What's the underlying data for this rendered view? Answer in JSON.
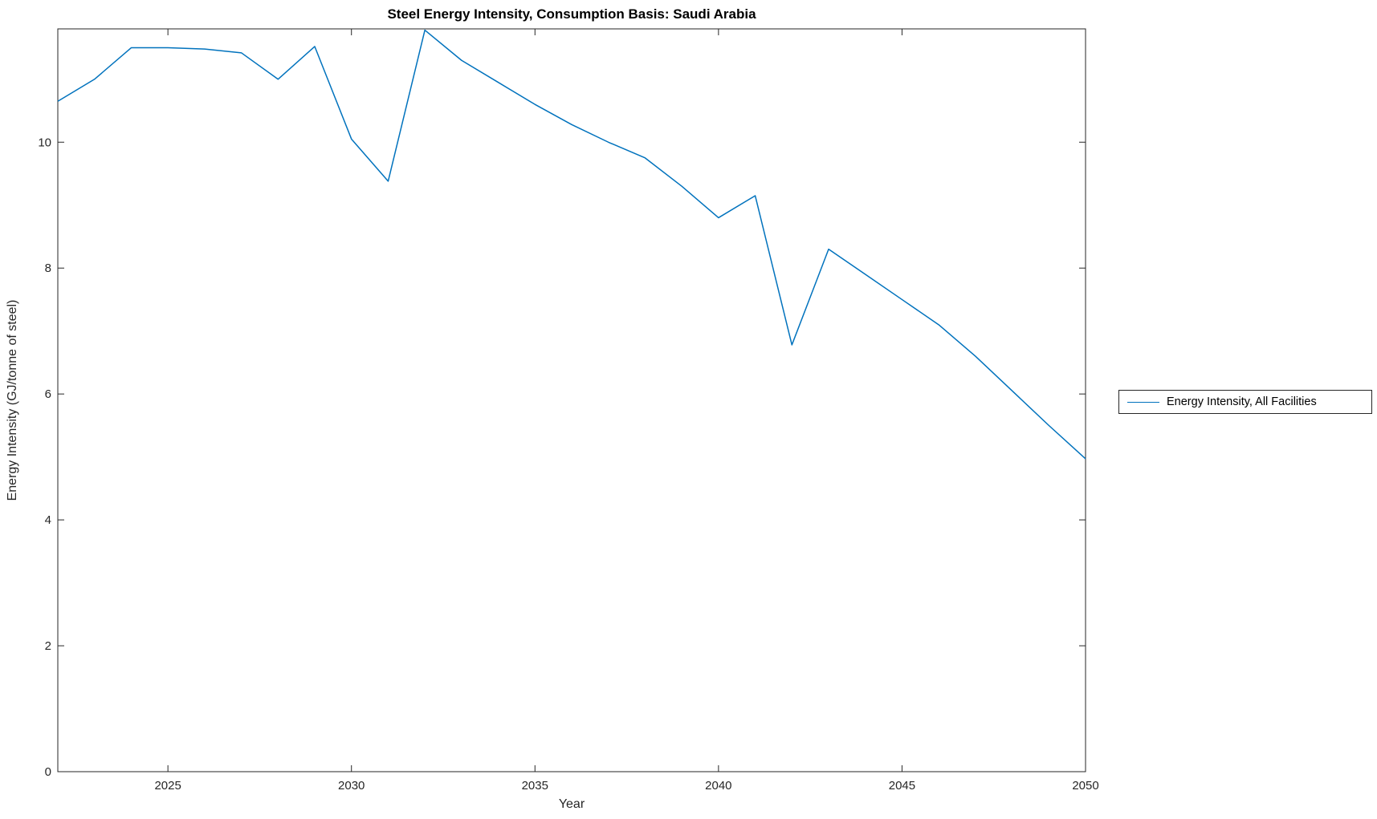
{
  "chart_data": {
    "type": "line",
    "title": "Steel Energy Intensity, Consumption Basis: Saudi Arabia",
    "xlabel": "Year",
    "ylabel": "Energy Intensity (GJ/tonne of steel)",
    "xlim": [
      2022,
      2050
    ],
    "ylim": [
      0,
      11.8
    ],
    "xticks": [
      2025,
      2030,
      2035,
      2040,
      2045,
      2050
    ],
    "yticks": [
      0,
      2,
      4,
      6,
      8,
      10
    ],
    "grid": false,
    "legend": {
      "position": "right-outside",
      "entries": [
        "Energy Intensity, All Facilities"
      ]
    },
    "line_color": "#0072BD",
    "axis_color": "#262626",
    "series": [
      {
        "name": "Energy Intensity, All Facilities",
        "color": "#0072BD",
        "x": [
          2022,
          2023,
          2024,
          2025,
          2026,
          2027,
          2028,
          2029,
          2030,
          2031,
          2032,
          2033,
          2034,
          2035,
          2036,
          2037,
          2038,
          2039,
          2040,
          2041,
          2042,
          2043,
          2044,
          2045,
          2046,
          2047,
          2048,
          2049,
          2050
        ],
        "values": [
          10.65,
          11.0,
          11.5,
          11.5,
          11.48,
          11.42,
          11.0,
          11.52,
          10.05,
          9.38,
          11.78,
          11.3,
          10.95,
          10.6,
          10.28,
          10.0,
          9.75,
          9.3,
          8.8,
          9.15,
          6.78,
          8.3,
          7.9,
          7.5,
          7.1,
          6.6,
          6.05,
          5.5,
          4.97
        ]
      }
    ]
  }
}
